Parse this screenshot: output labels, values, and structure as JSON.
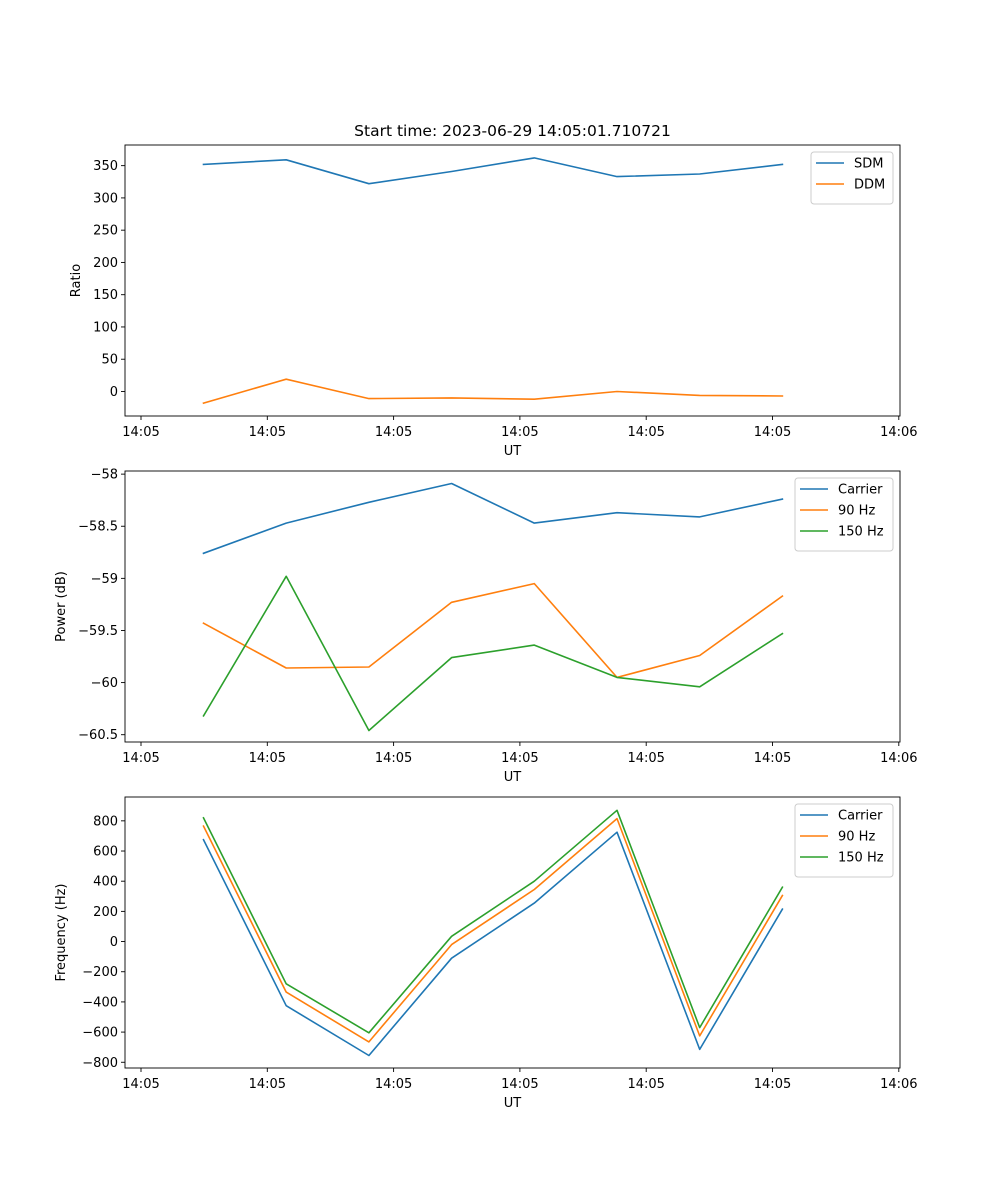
{
  "figure": {
    "title": "Start time: 2023-06-29 14:05:01.710721"
  },
  "chart_data": [
    {
      "type": "line",
      "title": "Start time: 2023-06-29 14:05:01.710721",
      "xlabel": "UT",
      "ylabel": "Ratio",
      "x_tick_labels": [
        "14:05",
        "14:05",
        "14:05",
        "14:05",
        "14:05",
        "14:05",
        "14:06"
      ],
      "y_ticks": [
        0,
        50,
        100,
        150,
        200,
        250,
        300,
        350
      ],
      "ylim": [
        -38,
        382
      ],
      "x": [
        1,
        2,
        3,
        4,
        5,
        6,
        7,
        8
      ],
      "legend_position": "top-right",
      "grid": false,
      "series": [
        {
          "name": "SDM",
          "color": "#1f77b4",
          "values": [
            352,
            359,
            322,
            341,
            362,
            333,
            337,
            352
          ]
        },
        {
          "name": "DDM",
          "color": "#ff7f0e",
          "values": [
            -18,
            19,
            -11,
            -10,
            -12,
            0,
            -6,
            -7
          ]
        }
      ]
    },
    {
      "type": "line",
      "xlabel": "UT",
      "ylabel": "Power (dB)",
      "x_tick_labels": [
        "14:05",
        "14:05",
        "14:05",
        "14:05",
        "14:05",
        "14:05",
        "14:06"
      ],
      "y_ticks": [
        -60.5,
        -60.0,
        -59.5,
        -59.0,
        -58.5,
        -58.0
      ],
      "ylim": [
        -60.57,
        -57.97
      ],
      "x": [
        1,
        2,
        3,
        4,
        5,
        6,
        7,
        8
      ],
      "legend_position": "top-right",
      "grid": false,
      "series": [
        {
          "name": "Carrier",
          "color": "#1f77b4",
          "values": [
            -58.76,
            -58.47,
            -58.27,
            -58.09,
            -58.47,
            -58.37,
            -58.41,
            -58.24
          ]
        },
        {
          "name": "90 Hz",
          "color": "#ff7f0e",
          "values": [
            -59.43,
            -59.86,
            -59.85,
            -59.23,
            -59.05,
            -59.95,
            -59.74,
            -59.17
          ]
        },
        {
          "name": "150 Hz",
          "color": "#2ca02c",
          "values": [
            -60.32,
            -58.98,
            -60.46,
            -59.76,
            -59.64,
            -59.95,
            -60.04,
            -59.53
          ]
        }
      ]
    },
    {
      "type": "line",
      "xlabel": "UT",
      "ylabel": "Frequency (Hz)",
      "x_tick_labels": [
        "14:05",
        "14:05",
        "14:05",
        "14:05",
        "14:05",
        "14:05",
        "14:06"
      ],
      "y_ticks": [
        -800,
        -600,
        -400,
        -200,
        0,
        200,
        400,
        600,
        800
      ],
      "ylim": [
        -838,
        958
      ],
      "x": [
        1,
        2,
        3,
        4,
        5,
        6,
        7,
        8
      ],
      "legend_position": "top-right",
      "grid": false,
      "series": [
        {
          "name": "Carrier",
          "color": "#1f77b4",
          "values": [
            675,
            -425,
            -755,
            -110,
            255,
            725,
            -715,
            215
          ]
        },
        {
          "name": "90 Hz",
          "color": "#ff7f0e",
          "values": [
            765,
            -335,
            -665,
            -20,
            345,
            815,
            -625,
            305
          ]
        },
        {
          "name": "150 Hz",
          "color": "#2ca02c",
          "values": [
            820,
            -280,
            -605,
            35,
            400,
            870,
            -570,
            360
          ]
        }
      ]
    }
  ]
}
